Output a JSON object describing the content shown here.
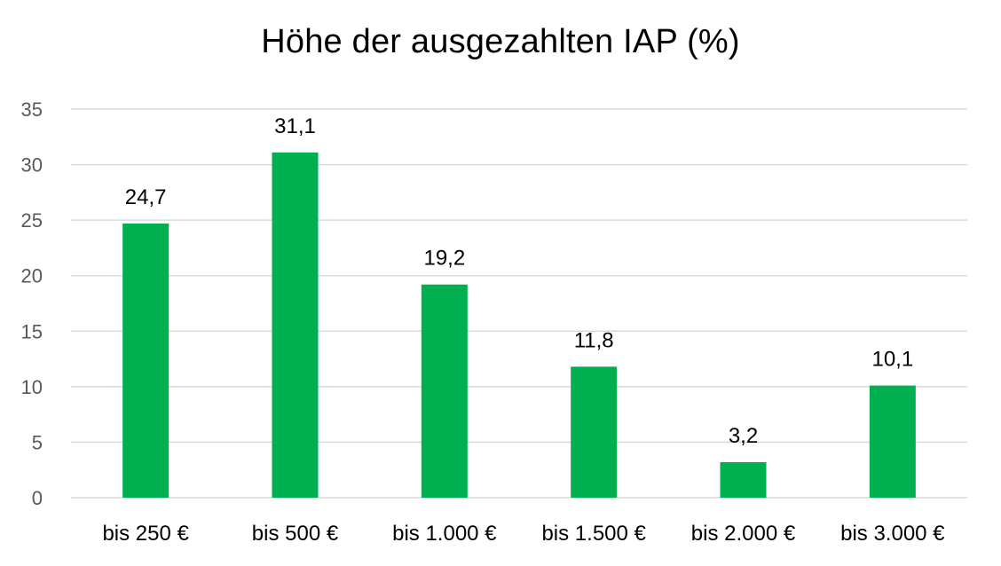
{
  "chart_data": {
    "type": "bar",
    "title": "Höhe der ausgezahlten IAP (%)",
    "categories": [
      "bis 250 €",
      "bis 500 €",
      "bis 1.000 €",
      "bis 1.500 €",
      "bis 2.000 €",
      "bis 3.000 €"
    ],
    "values": [
      24.7,
      31.1,
      19.2,
      11.8,
      3.2,
      10.1
    ],
    "data_labels": [
      "24,7",
      "31,1",
      "19,2",
      "11,8",
      "3,2",
      "10,1"
    ],
    "yticks": [
      0,
      5,
      10,
      15,
      20,
      25,
      30,
      35
    ],
    "ylim": [
      0,
      35
    ],
    "xlabel": "",
    "ylabel": "",
    "grid": true,
    "legend": "none",
    "bar_color": "#00b050"
  }
}
